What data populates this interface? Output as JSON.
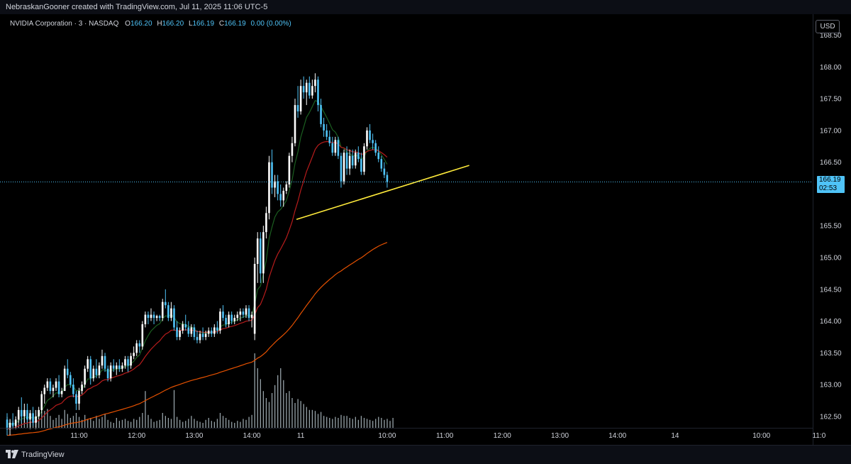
{
  "header": {
    "attribution": "NebraskanGooner created with TradingView.com, Jul 11, 2025 11:06 UTC-5"
  },
  "legend": {
    "symbol": "NVIDIA Corporation · 3 · NASDAQ",
    "o_label": "O",
    "o_value": "166.20",
    "h_label": "H",
    "h_value": "166.20",
    "l_label": "L",
    "l_value": "166.19",
    "c_label": "C",
    "c_value": "166.19",
    "change": "0.00 (0.00%)"
  },
  "currency_button": "USD",
  "last_price": {
    "price": "166.19",
    "countdown": "02:53"
  },
  "footer": {
    "brand": "TradingView"
  },
  "colors": {
    "up": "#ffffff",
    "down": "#4fc3f7",
    "volume": "#b0bec5",
    "ema_fast": "#1b5e20",
    "ema_mid": "#b71c1c",
    "ema_slow": "#e65100",
    "trendline": "#ffeb3b",
    "price_line": "#4fc3f7",
    "background": "#000000"
  },
  "chart_data": {
    "type": "candlestick",
    "interval": "3",
    "ylim": [
      162.32,
      168.83
    ],
    "y_ticks": [
      "168.50",
      "168.00",
      "167.50",
      "167.00",
      "166.50",
      "165.50",
      "165.00",
      "164.50",
      "164.00",
      "163.50",
      "163.00",
      "162.50"
    ],
    "x_ticks": [
      {
        "label": "11:00",
        "slot": 25
      },
      {
        "label": "12:00",
        "slot": 45
      },
      {
        "label": "13:00",
        "slot": 65
      },
      {
        "label": "14:00",
        "slot": 85
      },
      {
        "label": "11",
        "slot": 102
      },
      {
        "label": "10:00",
        "slot": 132
      },
      {
        "label": "11:00",
        "slot": 152
      },
      {
        "label": "12:00",
        "slot": 172
      },
      {
        "label": "13:00",
        "slot": 192
      },
      {
        "label": "14:00",
        "slot": 212
      },
      {
        "label": "14",
        "slot": 232
      },
      {
        "label": "10:00",
        "slot": 262
      },
      {
        "label": "11:0",
        "slot": 282
      }
    ],
    "candles_ohlc": [
      [
        162.45,
        162.55,
        162.2,
        162.3
      ],
      [
        162.3,
        162.45,
        162.2,
        162.4
      ],
      [
        162.4,
        162.55,
        162.3,
        162.35
      ],
      [
        162.35,
        162.5,
        162.3,
        162.45
      ],
      [
        162.45,
        162.65,
        162.4,
        162.6
      ],
      [
        162.6,
        162.8,
        162.4,
        162.5
      ],
      [
        162.5,
        162.7,
        162.4,
        162.6
      ],
      [
        162.6,
        162.7,
        162.4,
        162.45
      ],
      [
        162.45,
        162.6,
        162.3,
        162.55
      ],
      [
        162.55,
        162.65,
        162.35,
        162.4
      ],
      [
        162.4,
        162.6,
        162.3,
        162.5
      ],
      [
        162.5,
        162.65,
        162.45,
        162.6
      ],
      [
        162.6,
        162.9,
        162.55,
        162.85
      ],
      [
        162.85,
        163.0,
        162.7,
        162.95
      ],
      [
        162.95,
        163.1,
        162.9,
        163.05
      ],
      [
        163.05,
        163.1,
        162.85,
        162.9
      ],
      [
        162.9,
        163.0,
        162.8,
        162.95
      ],
      [
        162.95,
        163.1,
        162.9,
        163.05
      ],
      [
        163.05,
        163.15,
        162.8,
        162.85
      ],
      [
        162.85,
        162.95,
        162.8,
        162.9
      ],
      [
        162.9,
        163.3,
        162.9,
        163.25
      ],
      [
        163.25,
        163.4,
        163.1,
        163.15
      ],
      [
        163.15,
        163.2,
        162.95,
        163.0
      ],
      [
        163.0,
        163.1,
        162.8,
        162.85
      ],
      [
        162.85,
        162.9,
        162.6,
        162.7
      ],
      [
        162.7,
        162.95,
        162.6,
        162.9
      ],
      [
        162.9,
        163.05,
        162.85,
        163.0
      ],
      [
        163.0,
        163.3,
        162.95,
        163.25
      ],
      [
        163.25,
        163.45,
        163.2,
        163.4
      ],
      [
        163.4,
        163.45,
        163.0,
        163.1
      ],
      [
        163.1,
        163.3,
        163.05,
        163.25
      ],
      [
        163.25,
        163.4,
        163.1,
        163.15
      ],
      [
        163.15,
        163.35,
        163.1,
        163.3
      ],
      [
        163.3,
        163.55,
        163.25,
        163.45
      ],
      [
        163.45,
        163.5,
        163.2,
        163.25
      ],
      [
        163.25,
        163.3,
        163.05,
        163.1
      ],
      [
        163.1,
        163.35,
        163.05,
        163.3
      ],
      [
        163.3,
        163.4,
        163.2,
        163.25
      ],
      [
        163.25,
        163.35,
        163.15,
        163.3
      ],
      [
        163.3,
        163.4,
        163.2,
        163.25
      ],
      [
        163.25,
        163.35,
        163.2,
        163.3
      ],
      [
        163.3,
        163.45,
        163.25,
        163.4
      ],
      [
        163.4,
        163.45,
        163.2,
        163.3
      ],
      [
        163.3,
        163.5,
        163.25,
        163.45
      ],
      [
        163.45,
        163.6,
        163.4,
        163.5
      ],
      [
        163.5,
        163.7,
        163.45,
        163.65
      ],
      [
        163.65,
        163.7,
        163.5,
        163.6
      ],
      [
        163.6,
        164.0,
        163.55,
        163.95
      ],
      [
        163.95,
        164.15,
        163.9,
        164.1
      ],
      [
        164.1,
        164.15,
        163.95,
        164.05
      ],
      [
        164.05,
        164.2,
        164.0,
        164.1
      ],
      [
        164.1,
        164.15,
        163.95,
        164.05
      ],
      [
        164.05,
        164.1,
        164.0,
        164.08
      ],
      [
        164.08,
        164.1,
        164.0,
        164.05
      ],
      [
        164.05,
        164.35,
        164.0,
        164.3
      ],
      [
        164.3,
        164.5,
        164.2,
        164.25
      ],
      [
        164.25,
        164.3,
        164.0,
        164.05
      ],
      [
        164.05,
        164.3,
        164.0,
        164.2
      ],
      [
        164.2,
        164.25,
        163.85,
        163.9
      ],
      [
        163.9,
        164.0,
        163.7,
        163.75
      ],
      [
        163.75,
        163.9,
        163.7,
        163.85
      ],
      [
        163.85,
        164.0,
        163.8,
        163.95
      ],
      [
        163.95,
        164.1,
        163.85,
        163.9
      ],
      [
        163.9,
        164.0,
        163.75,
        163.8
      ],
      [
        163.8,
        163.95,
        163.75,
        163.9
      ],
      [
        163.9,
        163.95,
        163.7,
        163.75
      ],
      [
        163.75,
        163.85,
        163.65,
        163.7
      ],
      [
        163.7,
        163.85,
        163.65,
        163.8
      ],
      [
        163.8,
        163.9,
        163.7,
        163.75
      ],
      [
        163.75,
        163.85,
        163.7,
        163.8
      ],
      [
        163.8,
        163.9,
        163.75,
        163.85
      ],
      [
        163.85,
        163.9,
        163.75,
        163.8
      ],
      [
        163.8,
        163.95,
        163.75,
        163.9
      ],
      [
        163.9,
        164.0,
        163.8,
        163.85
      ],
      [
        163.85,
        164.2,
        163.8,
        164.15
      ],
      [
        164.15,
        164.25,
        164.0,
        164.05
      ],
      [
        164.05,
        164.1,
        163.9,
        163.95
      ],
      [
        163.95,
        164.15,
        163.9,
        164.1
      ],
      [
        164.1,
        164.15,
        163.95,
        164.0
      ],
      [
        164.0,
        164.1,
        163.95,
        164.05
      ],
      [
        164.05,
        164.15,
        164.0,
        164.1
      ],
      [
        164.1,
        164.2,
        164.0,
        164.15
      ],
      [
        164.15,
        164.2,
        164.05,
        164.1
      ],
      [
        164.1,
        164.25,
        164.05,
        164.2
      ],
      [
        164.2,
        164.25,
        164.0,
        164.05
      ],
      [
        164.05,
        164.15,
        163.9,
        164.1
      ],
      [
        163.8,
        165.0,
        163.7,
        164.9
      ],
      [
        164.9,
        165.4,
        164.6,
        165.3
      ],
      [
        165.3,
        165.4,
        164.6,
        164.75
      ],
      [
        164.75,
        165.5,
        164.6,
        165.4
      ],
      [
        165.4,
        165.8,
        165.3,
        165.7
      ],
      [
        165.7,
        166.6,
        165.6,
        166.5
      ],
      [
        166.5,
        166.7,
        166.0,
        166.1
      ],
      [
        166.1,
        166.3,
        165.95,
        166.2
      ],
      [
        166.2,
        166.3,
        165.9,
        166.0
      ],
      [
        166.0,
        166.15,
        165.8,
        165.9
      ],
      [
        165.9,
        166.1,
        165.8,
        166.05
      ],
      [
        166.05,
        166.2,
        166.0,
        166.15
      ],
      [
        166.15,
        166.65,
        166.1,
        166.6
      ],
      [
        166.6,
        166.9,
        166.5,
        166.8
      ],
      [
        166.8,
        167.5,
        166.75,
        167.4
      ],
      [
        167.4,
        167.7,
        167.2,
        167.3
      ],
      [
        167.3,
        167.8,
        167.25,
        167.7
      ],
      [
        167.7,
        167.85,
        167.5,
        167.6
      ],
      [
        167.6,
        167.8,
        167.4,
        167.75
      ],
      [
        167.75,
        167.85,
        167.5,
        167.55
      ],
      [
        167.55,
        167.8,
        167.5,
        167.7
      ],
      [
        167.7,
        167.9,
        167.6,
        167.8
      ],
      [
        167.8,
        167.85,
        167.3,
        167.4
      ],
      [
        167.4,
        167.5,
        167.05,
        167.1
      ],
      [
        167.1,
        167.2,
        166.9,
        167.0
      ],
      [
        167.0,
        167.1,
        166.85,
        166.9
      ],
      [
        166.9,
        167.0,
        166.75,
        166.8
      ],
      [
        166.8,
        166.9,
        166.6,
        166.65
      ],
      [
        166.65,
        166.9,
        166.6,
        166.85
      ],
      [
        166.85,
        166.9,
        166.55,
        166.6
      ],
      [
        166.6,
        166.65,
        166.1,
        166.2
      ],
      [
        166.2,
        166.7,
        166.15,
        166.65
      ],
      [
        166.65,
        166.75,
        166.3,
        166.4
      ],
      [
        166.4,
        166.7,
        166.3,
        166.6
      ],
      [
        166.6,
        166.7,
        166.4,
        166.45
      ],
      [
        166.45,
        166.7,
        166.4,
        166.65
      ],
      [
        166.65,
        166.75,
        166.5,
        166.55
      ],
      [
        166.55,
        166.65,
        166.3,
        166.35
      ],
      [
        166.35,
        166.8,
        166.3,
        166.75
      ],
      [
        166.75,
        167.05,
        166.7,
        167.0
      ],
      [
        167.0,
        167.1,
        166.8,
        166.85
      ],
      [
        166.85,
        166.95,
        166.7,
        166.8
      ],
      [
        166.8,
        166.85,
        166.6,
        166.65
      ],
      [
        166.65,
        166.75,
        166.5,
        166.55
      ],
      [
        166.55,
        166.6,
        166.35,
        166.4
      ],
      [
        166.4,
        166.5,
        166.25,
        166.3
      ],
      [
        166.3,
        166.35,
        166.1,
        166.19
      ]
    ],
    "volumes": [
      22,
      18,
      14,
      12,
      26,
      30,
      20,
      18,
      12,
      10,
      16,
      14,
      40,
      34,
      38,
      24,
      16,
      20,
      26,
      18,
      36,
      28,
      20,
      24,
      30,
      22,
      16,
      26,
      18,
      20,
      14,
      24,
      18,
      22,
      28,
      16,
      12,
      10,
      20,
      14,
      16,
      18,
      14,
      12,
      18,
      16,
      22,
      30,
      74,
      26,
      18,
      12,
      14,
      16,
      30,
      24,
      20,
      18,
      76,
      22,
      16,
      12,
      14,
      18,
      24,
      18,
      14,
      12,
      10,
      16,
      20,
      14,
      12,
      18,
      30,
      24,
      20,
      16,
      12,
      10,
      14,
      12,
      18,
      16,
      22,
      26,
      150,
      120,
      98,
      74,
      60,
      52,
      70,
      86,
      106,
      120,
      96,
      70,
      74,
      60,
      50,
      58,
      54,
      48,
      42,
      36,
      36,
      34,
      28,
      32,
      24,
      22,
      20,
      18,
      22,
      20,
      26,
      24,
      24,
      20,
      18,
      22,
      16,
      24,
      20,
      18,
      16,
      14,
      18,
      22,
      20,
      16,
      18,
      14,
      20
    ],
    "trendline": {
      "start": {
        "slot": 100.5,
        "price": 165.6
      },
      "end": {
        "slot": 160.5,
        "price": 166.45
      }
    },
    "last_price": 166.19
  }
}
